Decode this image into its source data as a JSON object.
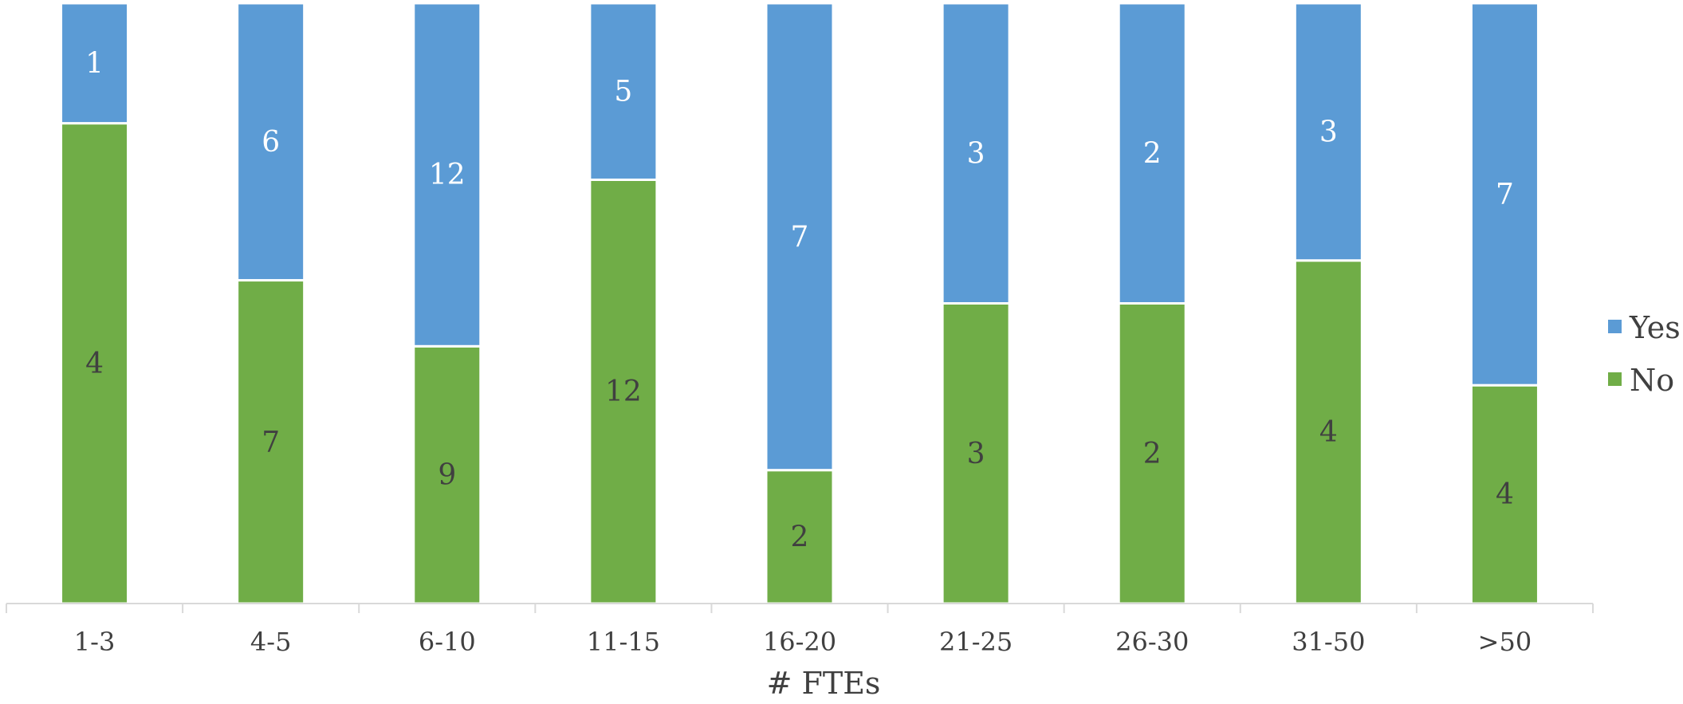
{
  "chart_data": {
    "type": "bar",
    "stacked": "percent",
    "categories": [
      "1-3",
      "4-5",
      "6-10",
      "11-15",
      "16-20",
      "21-25",
      "26-30",
      "31-50",
      ">50"
    ],
    "series": [
      {
        "name": "No",
        "values": [
          4,
          7,
          9,
          12,
          2,
          3,
          2,
          4,
          4
        ],
        "color": "#70ad47",
        "label_color": "#404040"
      },
      {
        "name": "Yes",
        "values": [
          1,
          6,
          12,
          5,
          7,
          3,
          2,
          3,
          7
        ],
        "color": "#5b9bd5",
        "label_color": "#ffffff"
      }
    ],
    "xlabel": "# FTEs",
    "ylabel": "",
    "title": "",
    "legend": {
      "position": "right",
      "order": [
        "Yes",
        "No"
      ]
    },
    "grid": false
  }
}
